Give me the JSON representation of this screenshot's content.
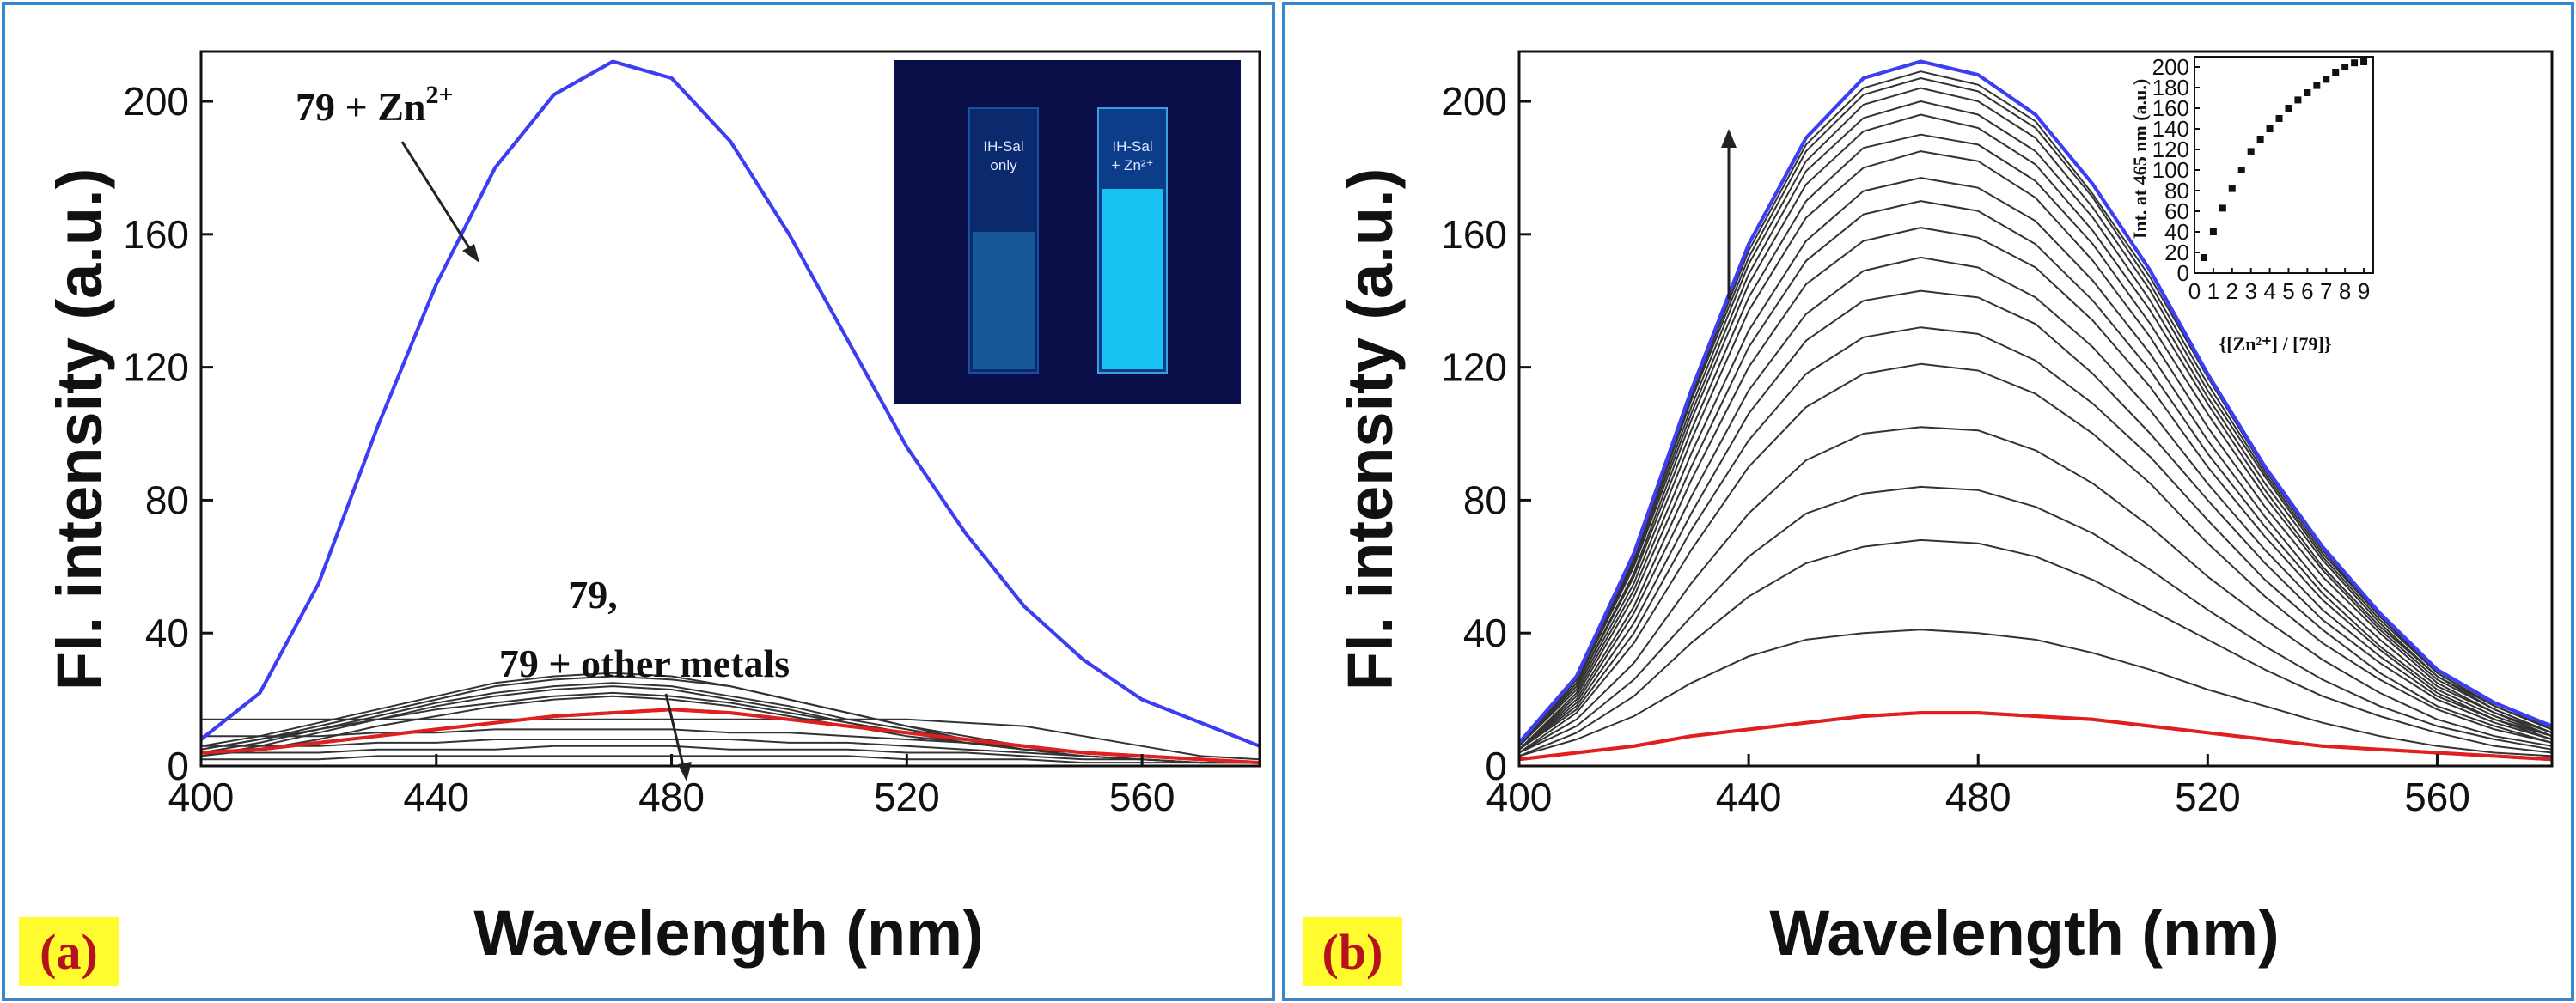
{
  "panels": [
    {
      "id": "a",
      "tag": "(a)",
      "inset_photo": {
        "left_label_1": "IH-Sal",
        "left_label_2": "only",
        "right_label_1": "IH-Sal",
        "right_label_2": "+ Zn²⁺"
      },
      "annotations": {
        "zn_label_base": "79 + Zn",
        "zn_label_sup": "2+",
        "others_line1": "79,",
        "others_line2": "79 + other metals"
      }
    },
    {
      "id": "b",
      "tag": "(b)"
    }
  ],
  "chart_data": [
    {
      "type": "line",
      "panel": "a",
      "title": "",
      "xlabel": "Wavelength (nm)",
      "ylabel": "Fl. intensity (a.u.)",
      "xlim": [
        400,
        580
      ],
      "ylim": [
        0,
        215
      ],
      "xticks": [
        400,
        440,
        480,
        520,
        560
      ],
      "yticks": [
        0,
        40,
        80,
        120,
        160,
        200
      ],
      "x": [
        400,
        410,
        420,
        430,
        440,
        450,
        460,
        470,
        480,
        490,
        500,
        510,
        520,
        530,
        540,
        550,
        560,
        570,
        580
      ],
      "series": [
        {
          "name": "79 + Zn2+",
          "color": "#3d3df2",
          "values": [
            8,
            22,
            55,
            102,
            145,
            180,
            202,
            212,
            207,
            188,
            160,
            128,
            96,
            70,
            48,
            32,
            20,
            13,
            6
          ]
        },
        {
          "name": "79",
          "color": "#e02020",
          "values": [
            4,
            5,
            7,
            9,
            11,
            13,
            15,
            16,
            17,
            16,
            14,
            12,
            10,
            8,
            6,
            4,
            3,
            2,
            1
          ]
        },
        {
          "name": "",
          "color": "#333333",
          "values": [
            5,
            8,
            12,
            16,
            20,
            24,
            26,
            27,
            26,
            24,
            20,
            16,
            12,
            9,
            6,
            4,
            3,
            2,
            1
          ]
        },
        {
          "name": "",
          "color": "#333333",
          "values": [
            6,
            9,
            13,
            17,
            21,
            25,
            27,
            28,
            27,
            24,
            20,
            16,
            12,
            8,
            6,
            4,
            3,
            2,
            1
          ]
        },
        {
          "name": "",
          "color": "#333333",
          "values": [
            4,
            7,
            11,
            15,
            19,
            22,
            24,
            25,
            24,
            21,
            18,
            14,
            11,
            8,
            5,
            4,
            3,
            2,
            1
          ]
        },
        {
          "name": "",
          "color": "#333333",
          "values": [
            3,
            6,
            10,
            14,
            18,
            21,
            23,
            24,
            23,
            20,
            17,
            13,
            10,
            7,
            5,
            3,
            2,
            1,
            1
          ]
        },
        {
          "name": "",
          "color": "#333333",
          "values": [
            5,
            8,
            11,
            14,
            17,
            19,
            21,
            22,
            21,
            19,
            16,
            13,
            10,
            7,
            5,
            4,
            3,
            2,
            1
          ]
        },
        {
          "name": "",
          "color": "#333333",
          "values": [
            3,
            5,
            8,
            12,
            15,
            18,
            20,
            21,
            20,
            18,
            15,
            12,
            9,
            7,
            5,
            3,
            2,
            1,
            1
          ]
        },
        {
          "name": "",
          "color": "#333333",
          "values": [
            14,
            14,
            14,
            14,
            14,
            14,
            14,
            14,
            14,
            14,
            14,
            14,
            14,
            13,
            12,
            9,
            6,
            3,
            2
          ]
        },
        {
          "name": "",
          "color": "#333333",
          "values": [
            9,
            9,
            9,
            10,
            10,
            11,
            11,
            11,
            11,
            10,
            10,
            9,
            8,
            7,
            6,
            4,
            3,
            2,
            1
          ]
        },
        {
          "name": "",
          "color": "#333333",
          "values": [
            6,
            6,
            6,
            7,
            7,
            8,
            8,
            8,
            8,
            8,
            7,
            7,
            6,
            5,
            4,
            3,
            2,
            1,
            1
          ]
        },
        {
          "name": "",
          "color": "#333333",
          "values": [
            4,
            4,
            4,
            5,
            5,
            5,
            6,
            6,
            6,
            5,
            5,
            5,
            4,
            4,
            3,
            2,
            2,
            1,
            1
          ]
        },
        {
          "name": "",
          "color": "#333333",
          "values": [
            2,
            2,
            2,
            3,
            3,
            3,
            3,
            3,
            3,
            3,
            3,
            3,
            2,
            2,
            2,
            1,
            1,
            1,
            1
          ]
        }
      ]
    },
    {
      "type": "line",
      "panel": "b",
      "title": "",
      "xlabel": "Wavelength (nm)",
      "ylabel": "Fl. intensity (a.u.)",
      "xlim": [
        400,
        580
      ],
      "ylim": [
        0,
        215
      ],
      "xticks": [
        400,
        440,
        480,
        520,
        560
      ],
      "yticks": [
        0,
        40,
        80,
        120,
        160,
        200
      ],
      "x": [
        400,
        410,
        420,
        430,
        440,
        450,
        460,
        470,
        480,
        490,
        500,
        510,
        520,
        530,
        540,
        550,
        560,
        570,
        580
      ],
      "annotations": [
        "arrow pointing up: increasing Zn2+"
      ],
      "series": [
        {
          "name": "",
          "color": "#e02020",
          "values": [
            2,
            4,
            6,
            9,
            11,
            13,
            15,
            16,
            16,
            15,
            14,
            12,
            10,
            8,
            6,
            5,
            4,
            3,
            2
          ]
        },
        {
          "name": "",
          "color": "#333333",
          "values": [
            3,
            8,
            15,
            25,
            33,
            38,
            40,
            41,
            40,
            38,
            34,
            29,
            23,
            18,
            13,
            9,
            6,
            4,
            3
          ]
        },
        {
          "name": "",
          "color": "#333333",
          "values": [
            3,
            10,
            21,
            37,
            51,
            61,
            66,
            68,
            67,
            63,
            56,
            47,
            38,
            29,
            21,
            15,
            10,
            6,
            4
          ]
        },
        {
          "name": "",
          "color": "#333333",
          "values": [
            4,
            12,
            26,
            45,
            63,
            76,
            82,
            84,
            83,
            78,
            70,
            59,
            47,
            36,
            26,
            18,
            12,
            8,
            5
          ]
        },
        {
          "name": "",
          "color": "#333333",
          "values": [
            4,
            14,
            31,
            55,
            76,
            92,
            100,
            102,
            101,
            95,
            85,
            72,
            57,
            44,
            32,
            22,
            14,
            9,
            6
          ]
        },
        {
          "name": "",
          "color": "#333333",
          "values": [
            4,
            16,
            37,
            65,
            90,
            108,
            118,
            121,
            119,
            112,
            100,
            85,
            67,
            51,
            37,
            26,
            17,
            11,
            7
          ]
        },
        {
          "name": "",
          "color": "#333333",
          "values": [
            5,
            17,
            40,
            71,
            98,
            118,
            129,
            132,
            130,
            122,
            109,
            93,
            74,
            56,
            41,
            28,
            18,
            12,
            7
          ]
        },
        {
          "name": "",
          "color": "#333333",
          "values": [
            5,
            18,
            43,
            76,
            106,
            128,
            140,
            143,
            141,
            133,
            118,
            100,
            80,
            61,
            44,
            31,
            20,
            13,
            8
          ]
        },
        {
          "name": "",
          "color": "#333333",
          "values": [
            5,
            19,
            46,
            81,
            113,
            136,
            149,
            153,
            150,
            141,
            126,
            107,
            85,
            65,
            47,
            33,
            21,
            14,
            8
          ]
        },
        {
          "name": "",
          "color": "#333333",
          "values": [
            5,
            20,
            48,
            86,
            120,
            145,
            158,
            162,
            159,
            150,
            134,
            114,
            90,
            69,
            50,
            35,
            22,
            14,
            9
          ]
        },
        {
          "name": "",
          "color": "#333333",
          "values": [
            5,
            21,
            51,
            90,
            126,
            152,
            166,
            170,
            167,
            157,
            140,
            119,
            94,
            72,
            52,
            36,
            23,
            15,
            9
          ]
        },
        {
          "name": "",
          "color": "#333333",
          "values": [
            5,
            22,
            53,
            94,
            131,
            158,
            173,
            177,
            174,
            164,
            146,
            124,
            98,
            75,
            54,
            38,
            24,
            16,
            9
          ]
        },
        {
          "name": "",
          "color": "#333333",
          "values": [
            6,
            23,
            55,
            98,
            137,
            165,
            180,
            185,
            182,
            171,
            152,
            129,
            102,
            78,
            57,
            40,
            25,
            16,
            10
          ]
        },
        {
          "name": "",
          "color": "#333333",
          "values": [
            6,
            24,
            57,
            101,
            141,
            170,
            186,
            190,
            187,
            176,
            157,
            133,
            106,
            81,
            59,
            41,
            26,
            17,
            10
          ]
        },
        {
          "name": "",
          "color": "#333333",
          "values": [
            6,
            24,
            58,
            104,
            145,
            175,
            191,
            196,
            192,
            181,
            161,
            137,
            109,
            83,
            60,
            42,
            27,
            17,
            10
          ]
        },
        {
          "name": "",
          "color": "#333333",
          "values": [
            6,
            25,
            60,
            106,
            148,
            179,
            195,
            200,
            196,
            185,
            165,
            140,
            111,
            85,
            62,
            43,
            27,
            18,
            11
          ]
        },
        {
          "name": "",
          "color": "#333333",
          "values": [
            6,
            25,
            61,
            108,
            151,
            182,
            199,
            204,
            200,
            189,
            168,
            143,
            113,
            87,
            63,
            44,
            28,
            18,
            11
          ]
        },
        {
          "name": "",
          "color": "#333333",
          "values": [
            6,
            26,
            62,
            110,
            153,
            185,
            202,
            207,
            203,
            192,
            171,
            145,
            115,
            88,
            64,
            45,
            28,
            18,
            11
          ]
        },
        {
          "name": "",
          "color": "#333333",
          "values": [
            6,
            26,
            63,
            111,
            155,
            187,
            204,
            209,
            205,
            194,
            172,
            147,
            117,
            89,
            65,
            45,
            29,
            19,
            11
          ]
        },
        {
          "name": "",
          "color": "#3d3df2",
          "values": [
            7,
            27,
            64,
            113,
            157,
            189,
            207,
            212,
            208,
            196,
            175,
            149,
            118,
            90,
            66,
            46,
            29,
            19,
            12
          ]
        }
      ]
    },
    {
      "type": "scatter",
      "panel": "b-inset",
      "title": "",
      "xlabel": "{[Zn²⁺] / [79]}",
      "ylabel": "Int. at 465 nm (a.u.)",
      "xlim": [
        0,
        9.5
      ],
      "ylim": [
        0,
        210
      ],
      "xticks": [
        0,
        1,
        2,
        3,
        4,
        5,
        6,
        7,
        8,
        9
      ],
      "yticks": [
        0,
        20,
        40,
        60,
        80,
        100,
        120,
        140,
        160,
        180,
        200
      ],
      "x": [
        0.5,
        1.0,
        1.5,
        2.0,
        2.5,
        3.0,
        3.5,
        4.0,
        4.5,
        5.0,
        5.5,
        6.0,
        6.5,
        7.0,
        7.5,
        8.0,
        8.5,
        9.0
      ],
      "values": [
        15,
        40,
        63,
        82,
        100,
        118,
        130,
        140,
        150,
        160,
        168,
        175,
        182,
        188,
        195,
        200,
        204,
        205
      ]
    }
  ]
}
